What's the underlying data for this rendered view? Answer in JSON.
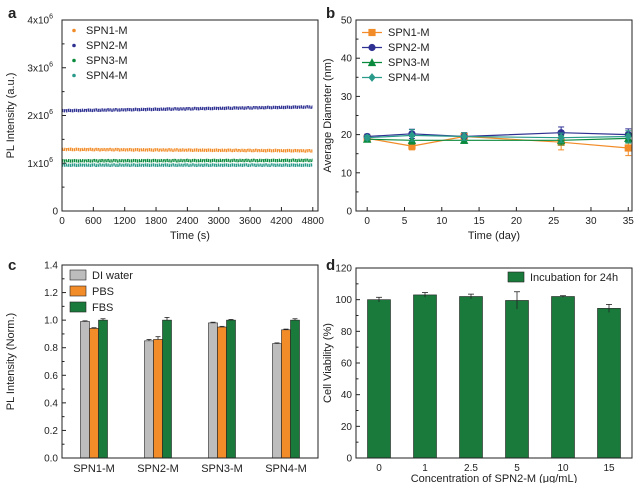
{
  "chart_data": [
    {
      "panel_label": "a",
      "type": "line",
      "xlabel": "Time (s)",
      "ylabel": "PL Intensity (a.u.)",
      "xlim": [
        0,
        4900
      ],
      "ylim": [
        0,
        4000000
      ],
      "x_ticks": [
        "0",
        "600",
        "1200",
        "1800",
        "2400",
        "3000",
        "3600",
        "4200",
        "4800"
      ],
      "y_ticks": [
        "0",
        "1x10",
        "2x10",
        "3x10",
        "4x10"
      ],
      "y_tick_values": [
        0,
        1000000,
        2000000,
        3000000,
        4000000
      ],
      "y_tick_exponent": "6",
      "x_range": [
        0,
        4800
      ],
      "legend_position": "top-left",
      "series": [
        {
          "name": "SPN1-M",
          "color": "#f28c28",
          "marker": "dot",
          "start": 1290000,
          "end": 1260000
        },
        {
          "name": "SPN2-M",
          "color": "#2e3192",
          "marker": "dot",
          "start": 2100000,
          "end": 2180000
        },
        {
          "name": "SPN3-M",
          "color": "#0a8a3c",
          "marker": "dot",
          "start": 1050000,
          "end": 1060000
        },
        {
          "name": "SPN4-M",
          "color": "#2a9a8a",
          "marker": "dot",
          "start": 960000,
          "end": 960000
        }
      ]
    },
    {
      "panel_label": "b",
      "type": "line",
      "xlabel": "Time (day)",
      "ylabel": "Average Diameter (nm)",
      "xlim": [
        -1.5,
        35.5
      ],
      "ylim": [
        0,
        50
      ],
      "x_ticks": [
        "0",
        "5",
        "10",
        "15",
        "20",
        "25",
        "30",
        "35"
      ],
      "x_tick_values": [
        0,
        5,
        10,
        15,
        20,
        25,
        30,
        35
      ],
      "y_ticks": [
        "0",
        "10",
        "20",
        "30",
        "40",
        "50"
      ],
      "y_tick_values": [
        0,
        10,
        20,
        30,
        40,
        50
      ],
      "legend_position": "top-left",
      "x": [
        0,
        6,
        13,
        26,
        35
      ],
      "series": [
        {
          "name": "SPN1-M",
          "color": "#f28c28",
          "marker": "square",
          "values": [
            19.0,
            17.0,
            19.5,
            18.0,
            16.5
          ],
          "errors": [
            0.6,
            1.0,
            1.0,
            2.0,
            2.0
          ]
        },
        {
          "name": "SPN2-M",
          "color": "#2e3192",
          "marker": "circle",
          "values": [
            19.5,
            20.2,
            19.5,
            20.5,
            20.0
          ],
          "errors": [
            0.6,
            1.2,
            1.0,
            1.5,
            1.5
          ]
        },
        {
          "name": "SPN3-M",
          "color": "#0a8a3c",
          "marker": "triangle",
          "values": [
            18.8,
            18.5,
            18.5,
            18.5,
            19.0
          ],
          "errors": [
            0.6,
            1.0,
            0.8,
            1.2,
            1.2
          ]
        },
        {
          "name": "SPN4-M",
          "color": "#2a9a8a",
          "marker": "diamond",
          "values": [
            19.2,
            19.8,
            19.5,
            19.2,
            19.5
          ],
          "errors": [
            0.6,
            1.5,
            1.0,
            1.2,
            1.5
          ]
        }
      ]
    },
    {
      "panel_label": "c",
      "type": "bar",
      "xlabel": "",
      "ylabel": "PL Intensity (Norm.)",
      "ylim": [
        0,
        1.4
      ],
      "y_ticks": [
        "0.0",
        "0.2",
        "0.4",
        "0.6",
        "0.8",
        "1.0",
        "1.2",
        "1.4"
      ],
      "y_tick_values": [
        0,
        0.2,
        0.4,
        0.6,
        0.8,
        1.0,
        1.2,
        1.4
      ],
      "categories": [
        "SPN1-M",
        "SPN2-M",
        "SPN3-M",
        "SPN4-M"
      ],
      "legend_position": "top-left",
      "series": [
        {
          "name": "DI water",
          "color": "#bdbdbd",
          "values": [
            0.99,
            0.85,
            0.98,
            0.83
          ],
          "errors": [
            0.005,
            0.01,
            0.005,
            0.005
          ]
        },
        {
          "name": "PBS",
          "color": "#f28c28",
          "values": [
            0.94,
            0.86,
            0.95,
            0.93
          ],
          "errors": [
            0.005,
            0.02,
            0.005,
            0.005
          ]
        },
        {
          "name": "FBS",
          "color": "#1a7a3c",
          "values": [
            1.0,
            1.0,
            1.0,
            1.0
          ],
          "errors": [
            0.01,
            0.02,
            0.005,
            0.01
          ]
        }
      ]
    },
    {
      "panel_label": "d",
      "type": "bar",
      "xlabel": "Concentration of SPN2-M (μg/mL)",
      "ylabel": "Cell Viability (%)",
      "ylim": [
        0,
        120
      ],
      "y_ticks": [
        "0",
        "20",
        "40",
        "60",
        "80",
        "100",
        "120"
      ],
      "y_tick_values": [
        0,
        20,
        40,
        60,
        80,
        100,
        120
      ],
      "categories": [
        "0",
        "1",
        "2.5",
        "5",
        "10",
        "15"
      ],
      "legend_position": "top-right",
      "series": [
        {
          "name": "Incubation for 24h",
          "color": "#1a7a3c",
          "values": [
            100,
            103,
            102,
            99.5,
            102,
            94.5
          ],
          "errors": [
            1.5,
            1.5,
            1.5,
            5.5,
            0.5,
            2.5
          ]
        }
      ]
    }
  ]
}
